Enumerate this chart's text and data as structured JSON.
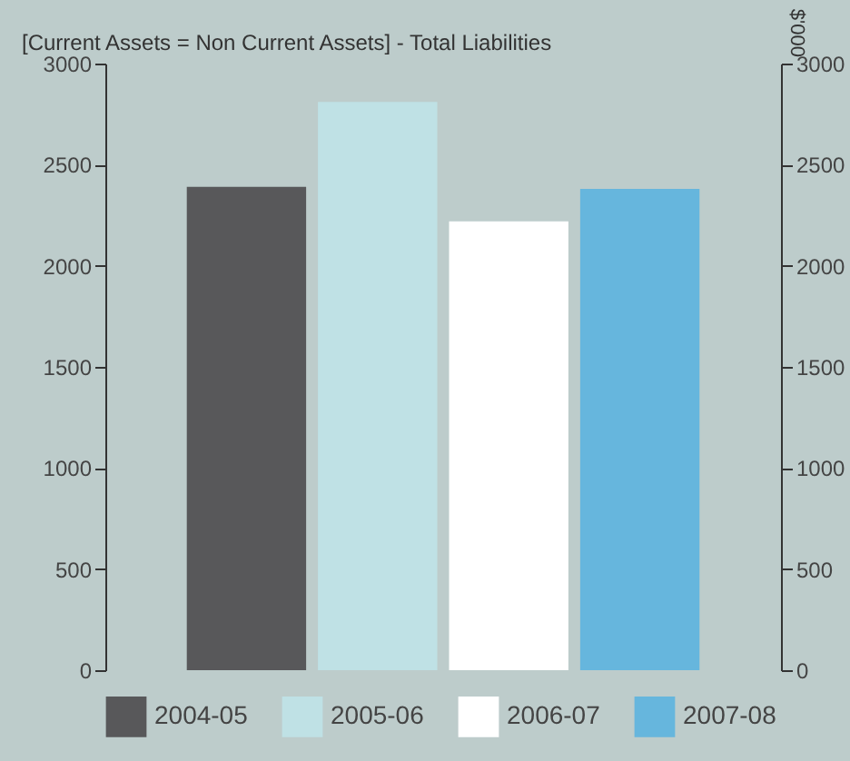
{
  "chart_data": {
    "type": "bar",
    "title": "[Current Assets = Non Current Assets] - Total Liabilities",
    "y2label": "$'000",
    "categories": [
      null
    ],
    "series": [
      {
        "name": "2004-05",
        "color": "#58585a",
        "values": [
          2390
        ]
      },
      {
        "name": "2005-06",
        "color": "#bfe1e5",
        "values": [
          2810
        ]
      },
      {
        "name": "2006-07",
        "color": "#ffffff",
        "values": [
          2220
        ]
      },
      {
        "name": "2007-08",
        "color": "#66b6dd",
        "values": [
          2380
        ]
      }
    ],
    "ylim": [
      0,
      3000
    ],
    "yticks": [
      0,
      500,
      1000,
      1500,
      2000,
      2500,
      3000
    ],
    "y2lim": [
      0,
      3000
    ],
    "y2ticks": [
      0,
      500,
      1000,
      1500,
      2000,
      2500,
      3000
    ],
    "grid": false,
    "legend": "bottom"
  }
}
